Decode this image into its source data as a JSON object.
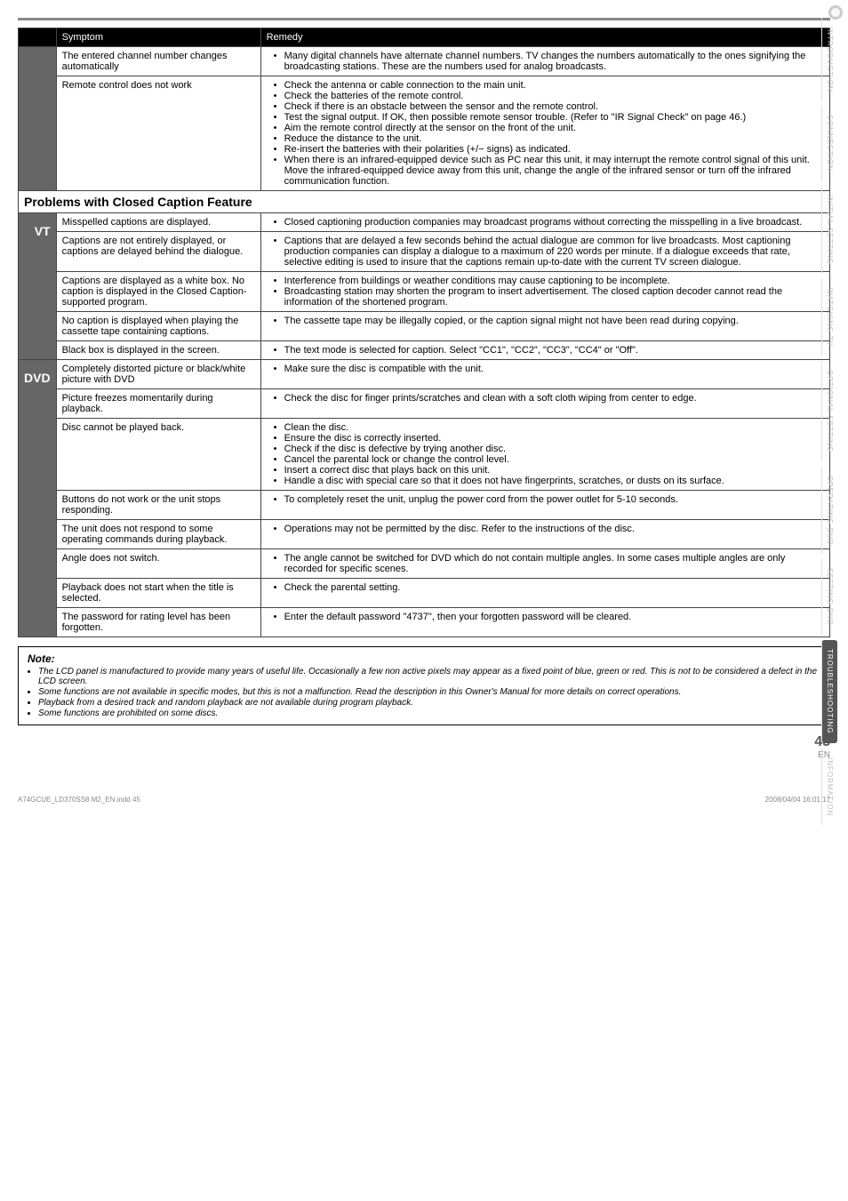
{
  "sideTabs": [
    "INTRODUCTION",
    "CONNECTION",
    "INITIAL SETTING",
    "WATCHING TV",
    "OPTIONAL SETTING",
    "OPERATING DVD",
    "SETTING DVD",
    "TROUBLESHOOTING",
    "INFORMATION"
  ],
  "sideActiveIndex": 7,
  "headers": {
    "symptom": "Symptom",
    "remedy": "Remedy"
  },
  "sections": [
    {
      "catLabel": "",
      "rows": [
        {
          "symptom": "The entered channel number changes automatically",
          "remedy": [
            "Many digital channels have alternate channel numbers. TV changes the numbers automatically to the ones signifying the broadcasting stations. These are the numbers used for analog broadcasts."
          ]
        },
        {
          "symptom": "Remote control does not work",
          "remedy": [
            "Check the antenna or cable connection to the main unit.",
            "Check the batteries of the remote control.",
            "Check if there is an obstacle between the sensor and the remote control.",
            "Test the signal output. If OK, then possible remote sensor trouble. (Refer to \"IR Signal Check\" on page 46.)",
            "Aim the remote control directly at the sensor on the front of the unit.",
            "Reduce the distance to the unit.",
            "Re-insert the batteries with their polarities (+/− signs) as indicated.",
            "When there is an infrared-equipped device such as PC near this unit, it may interrupt the remote control signal of this unit. Move the infrared-equipped device away from this unit, change the angle of the infrared sensor or turn off the infrared communication function."
          ]
        }
      ]
    },
    {
      "title": "Problems with Closed Caption Feature",
      "catLabel": "T V",
      "rows": [
        {
          "symptom": "Misspelled captions are displayed.",
          "remedy": [
            "Closed captioning production companies may broadcast programs without correcting the misspelling in a live broadcast."
          ]
        },
        {
          "symptom": "Captions are not entirely displayed, or captions are delayed behind the dialogue.",
          "remedy": [
            "Captions that are delayed a few seconds behind the actual dialogue are common for live broadcasts. Most captioning production companies can display a dialogue to a maximum of 220 words per minute. If a dialogue exceeds that rate, selective editing is used to insure that the captions remain up-to-date with the current TV screen dialogue."
          ]
        },
        {
          "symptom": "Captions are displayed as a white box.\nNo caption is displayed in the Closed Caption-supported program.",
          "remedy": [
            "Interference from buildings or weather conditions may cause captioning to be incomplete.",
            "Broadcasting station may shorten the program to insert advertisement. The closed caption decoder cannot read the information of the shortened program."
          ]
        },
        {
          "symptom": "No caption is displayed when playing the cassette tape containing captions.",
          "remedy": [
            "The cassette tape may be illegally copied, or the caption signal might not have been read during copying."
          ]
        },
        {
          "symptom": "Black box is displayed in the screen.",
          "remedy": [
            "The text mode is selected for caption. Select \"CC1\", \"CC2\", \"CC3\", \"CC4\" or \"Off\"."
          ]
        }
      ]
    },
    {
      "catLabel": "D V D",
      "rows": [
        {
          "symptom": "Completely distorted picture or black/white picture with DVD",
          "remedy": [
            "Make sure the disc is compatible with the unit."
          ]
        },
        {
          "symptom": "Picture freezes momentarily during playback.",
          "remedy": [
            "Check the disc for finger prints/scratches and clean with a soft cloth wiping from center to edge."
          ]
        },
        {
          "symptom": "Disc cannot be played back.",
          "remedy": [
            "Clean the disc.",
            "Ensure the disc is correctly inserted.",
            "Check if the disc is defective by trying another disc.",
            "Cancel the parental lock or change the control level.",
            "Insert a correct disc that plays back on this unit.",
            "Handle a disc with special care so that it does not have fingerprints, scratches, or dusts on its surface."
          ]
        },
        {
          "symptom": "Buttons do not work or the unit stops responding.",
          "remedy": [
            "To completely reset the unit, unplug the power cord from the power outlet for 5-10 seconds."
          ]
        },
        {
          "symptom": "The unit does not respond to some operating commands during playback.",
          "remedy": [
            "Operations may not be permitted by the disc. Refer to the instructions of the disc."
          ]
        },
        {
          "symptom": "Angle does not switch.",
          "remedy": [
            "The angle cannot be switched for DVD which do not contain multiple angles. In some cases multiple angles are only recorded for specific scenes."
          ]
        },
        {
          "symptom": "Playback does not start when the title is selected.",
          "remedy": [
            "Check the parental setting."
          ]
        },
        {
          "symptom": "The password for rating level has been forgotten.",
          "remedy": [
            "Enter the default password \"4737\", then your forgotten password will be cleared."
          ]
        }
      ]
    }
  ],
  "note": {
    "title": "Note:",
    "items": [
      "The LCD panel is manufactured to provide many years of useful life. Occasionally a few non active pixels may appear as a fixed point of blue, green or red. This is not to be considered a defect in the LCD screen.",
      "Some functions are not available in specific modes, but this is not a malfunction. Read the description in this Owner's Manual for more details on correct operations.",
      "Playback from a desired track and random playback are not available during program playback.",
      "Some functions are prohibited on some discs."
    ]
  },
  "footer": {
    "page": "45",
    "en": "EN"
  },
  "bottom": {
    "left": "A74GCUE_LD370SS8 M2_EN.indd   45",
    "right": "2008/04/04   16:01:17"
  }
}
